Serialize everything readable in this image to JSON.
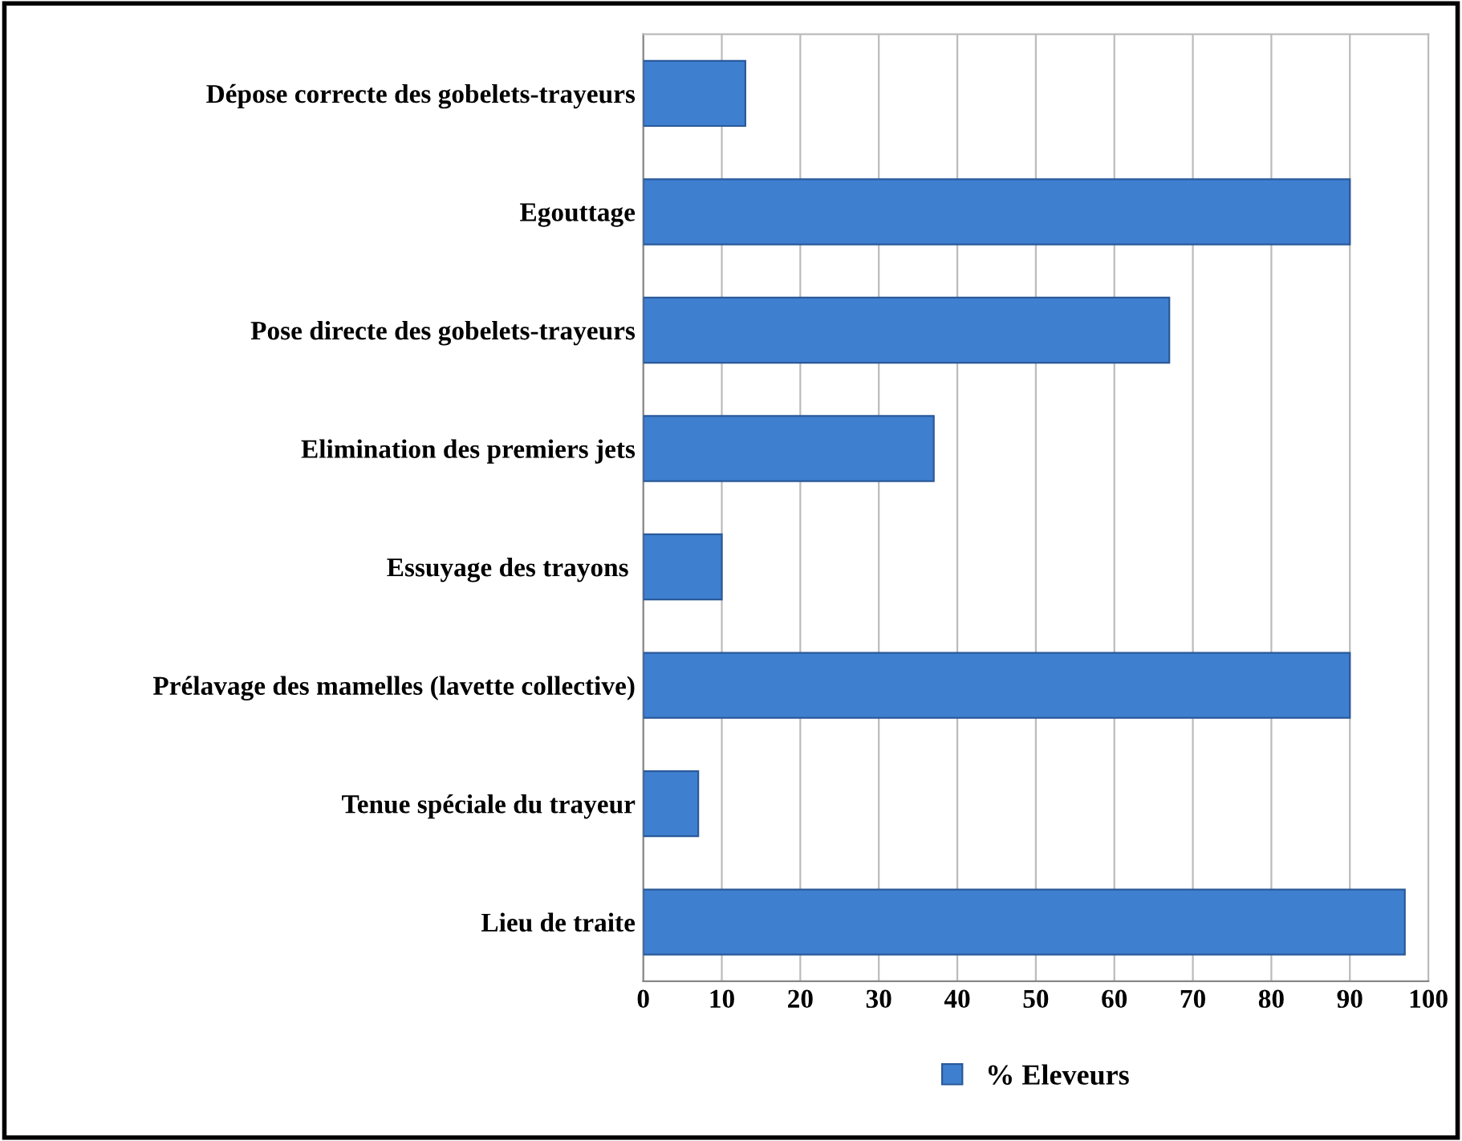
{
  "chart_data": {
    "type": "bar",
    "orientation": "horizontal",
    "categories": [
      "Dépose correcte des gobelets-trayeurs",
      "Egouttage",
      "Pose directe des gobelets-trayeurs",
      "Elimination des premiers jets",
      "Essuyage des trayons ",
      "Prélavage des mamelles (lavette collective)",
      "Tenue spéciale du trayeur",
      "Lieu de traite"
    ],
    "series": [
      {
        "name": "% Eleveurs",
        "color": "#3f7fd0",
        "values": [
          13,
          90,
          67,
          37,
          10,
          90,
          7,
          97
        ]
      }
    ],
    "xlim": [
      0,
      100
    ],
    "xticks": [
      0,
      10,
      20,
      30,
      40,
      50,
      60,
      70,
      80,
      90,
      100
    ],
    "grid": "x",
    "legend": "bottom"
  }
}
